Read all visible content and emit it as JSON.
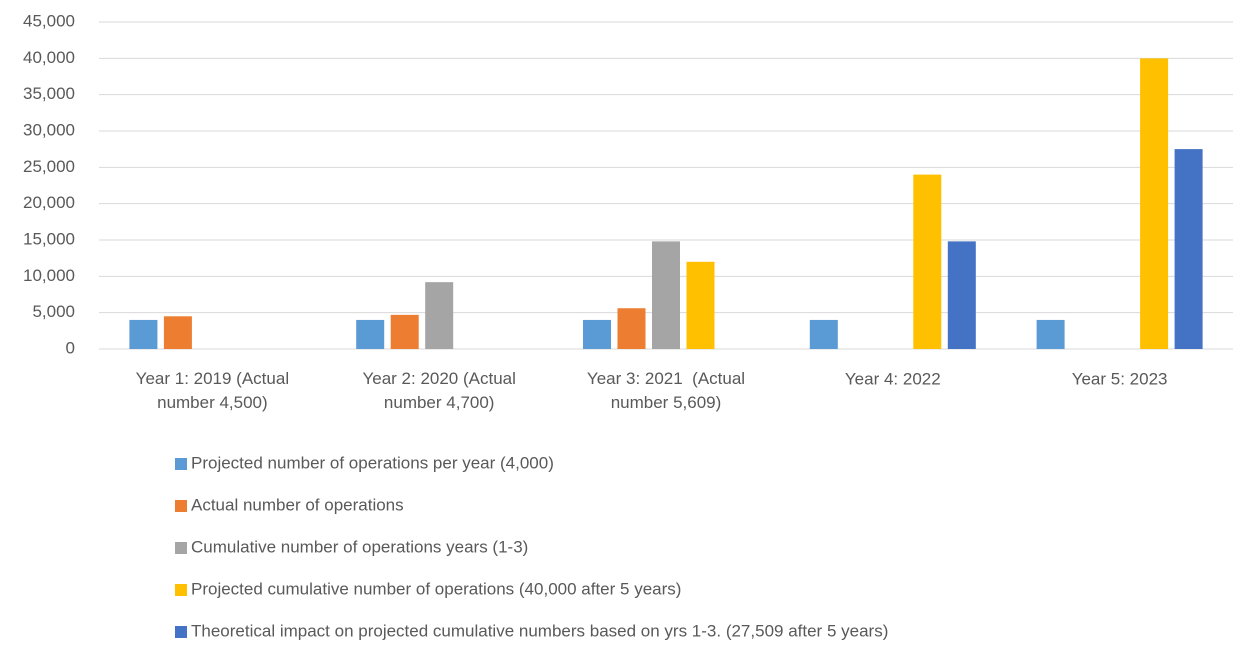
{
  "chart_data": {
    "type": "bar",
    "categories": [
      "Year 1: 2019 (Actual number 4,500)",
      "Year 2: 2020 (Actual number 4,700)",
      "Year 3: 2021  (Actual number 5,609)",
      "Year 4: 2022",
      "Year 5: 2023"
    ],
    "series": [
      {
        "name": "Projected number of operations per year (4,000)",
        "color": "#5b9bd5",
        "values": [
          4000,
          4000,
          4000,
          4000,
          4000
        ]
      },
      {
        "name": "Actual number of operations",
        "color": "#ed7d31",
        "values": [
          4500,
          4700,
          5609,
          null,
          null
        ]
      },
      {
        "name": "Cumulative number of operations years (1-3)",
        "color": "#a5a5a5",
        "values": [
          null,
          9200,
          14809,
          null,
          null
        ]
      },
      {
        "name": "Projected cumulative number of operations (40,000 after 5 years)",
        "color": "#ffc000",
        "values": [
          null,
          null,
          12000,
          24000,
          40000
        ]
      },
      {
        "name": "Theoretical impact on projected cumulative numbers based on yrs 1-3. (27,509 after 5 years)",
        "color": "#4472c4",
        "values": [
          null,
          null,
          null,
          14809,
          27509
        ]
      }
    ],
    "ylim": [
      0,
      45000
    ],
    "yticks": [
      0,
      {
        "value": 5000,
        "label": "5,000"
      },
      {
        "value": 10000,
        "label": "10,000"
      },
      {
        "value": 15000,
        "label": "15,000"
      },
      {
        "value": 20000,
        "label": "20,000"
      },
      {
        "value": 25000,
        "label": "25,000"
      },
      {
        "value": 30000,
        "label": "30,000"
      },
      {
        "value": 35000,
        "label": "35,000"
      },
      {
        "value": 40000,
        "label": "40,000"
      },
      {
        "value": 45000,
        "label": "45,000"
      }
    ],
    "grid": true,
    "legend": "bottom"
  }
}
